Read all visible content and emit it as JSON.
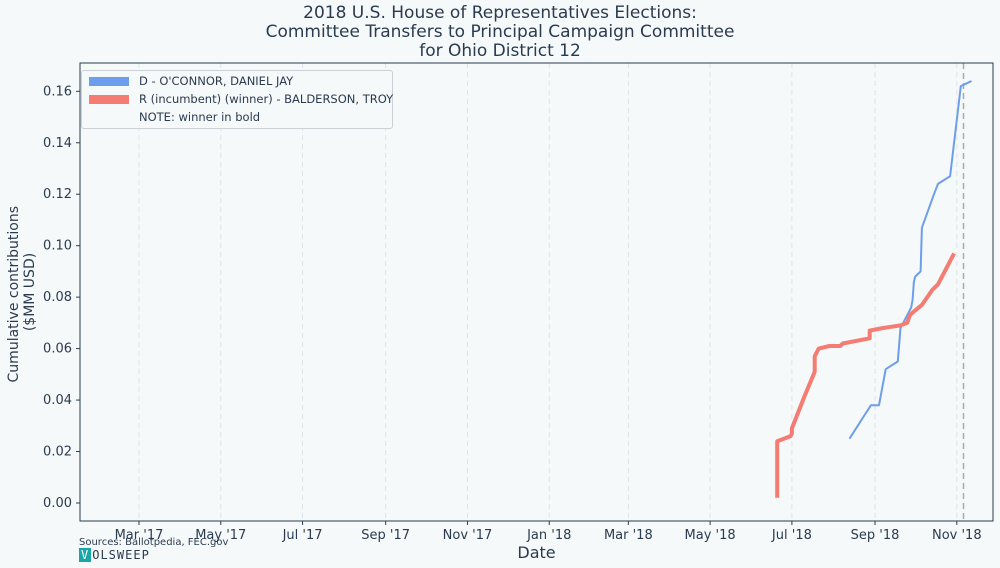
{
  "title_lines": [
    "2018 U.S. House of Representatives Elections:",
    "Committee Transfers to Principal Campaign Committee",
    "for Ohio District 12"
  ],
  "sources": "Sources: Ballotpedia, FEC.gov",
  "logo": {
    "first": "V",
    "rest": "OLSWEEP"
  },
  "legend": {
    "items": [
      {
        "label": "D - O'CONNOR, DANIEL JAY",
        "color": "#6d9eeb"
      },
      {
        "label": "R (incumbent) (winner) - BALDERSON, TROY",
        "color": "#f47c72"
      }
    ],
    "note": "NOTE: winner in bold"
  },
  "chart_data": {
    "type": "line",
    "title": "2018 U.S. House of Representatives Elections: Committee Transfers to Principal Campaign Committee for Ohio District 12",
    "xlabel": "Date",
    "ylabel_lines": [
      "Cumulative contributions",
      "($MM USD)"
    ],
    "xlim": [
      "2017-01-16",
      "2018-11-28"
    ],
    "ylim": [
      -0.007,
      0.171
    ],
    "x_ticks": [
      {
        "date": "2017-03-01",
        "label": "Mar '17"
      },
      {
        "date": "2017-05-01",
        "label": "May '17"
      },
      {
        "date": "2017-07-01",
        "label": "Jul '17"
      },
      {
        "date": "2017-09-01",
        "label": "Sep '17"
      },
      {
        "date": "2017-11-01",
        "label": "Nov '17"
      },
      {
        "date": "2018-01-01",
        "label": "Jan '18"
      },
      {
        "date": "2018-03-01",
        "label": "Mar '18"
      },
      {
        "date": "2018-05-01",
        "label": "May '18"
      },
      {
        "date": "2018-07-01",
        "label": "Jul '18"
      },
      {
        "date": "2018-09-01",
        "label": "Sep '18"
      },
      {
        "date": "2018-11-01",
        "label": "Nov '18"
      }
    ],
    "y_ticks": [
      0.0,
      0.02,
      0.04,
      0.06,
      0.08,
      0.1,
      0.12,
      0.14,
      0.16
    ],
    "y_tick_labels": [
      "0.00",
      "0.02",
      "0.04",
      "0.06",
      "0.08",
      "0.10",
      "0.12",
      "0.14",
      "0.16"
    ],
    "grid": "vertical-dashed",
    "legend_position": "top-left",
    "event_line": {
      "date": "2018-11-06",
      "style": "dashed",
      "color": "#aaaaaa"
    },
    "series": [
      {
        "name": "D - O'CONNOR, DANIEL JAY",
        "color": "#6d9eeb",
        "bold": false,
        "points": [
          [
            "2018-08-13",
            0.025
          ],
          [
            "2018-08-24",
            0.034
          ],
          [
            "2018-08-29",
            0.038
          ],
          [
            "2018-09-04",
            0.038
          ],
          [
            "2018-09-09",
            0.052
          ],
          [
            "2018-09-18",
            0.055
          ],
          [
            "2018-09-20",
            0.068
          ],
          [
            "2018-09-24",
            0.072
          ],
          [
            "2018-09-28",
            0.076
          ],
          [
            "2018-09-29",
            0.079
          ],
          [
            "2018-09-30",
            0.086
          ],
          [
            "2018-10-01",
            0.088
          ],
          [
            "2018-10-05",
            0.09
          ],
          [
            "2018-10-06",
            0.107
          ],
          [
            "2018-10-15",
            0.12
          ],
          [
            "2018-10-18",
            0.124
          ],
          [
            "2018-10-27",
            0.127
          ],
          [
            "2018-11-04",
            0.162
          ],
          [
            "2018-11-12",
            0.164
          ]
        ]
      },
      {
        "name": "R (incumbent) (winner) - BALDERSON, TROY",
        "color": "#f47c72",
        "bold": true,
        "points": [
          [
            "2018-06-20",
            0.002
          ],
          [
            "2018-06-20",
            0.024
          ],
          [
            "2018-06-25",
            0.025
          ],
          [
            "2018-06-30",
            0.026
          ],
          [
            "2018-07-01",
            0.027
          ],
          [
            "2018-07-01",
            0.029
          ],
          [
            "2018-07-10",
            0.041
          ],
          [
            "2018-07-18",
            0.051
          ],
          [
            "2018-07-18",
            0.057
          ],
          [
            "2018-07-21",
            0.06
          ],
          [
            "2018-07-29",
            0.061
          ],
          [
            "2018-08-06",
            0.061
          ],
          [
            "2018-08-08",
            0.062
          ],
          [
            "2018-08-28",
            0.064
          ],
          [
            "2018-08-28",
            0.067
          ],
          [
            "2018-09-07",
            0.068
          ],
          [
            "2018-09-20",
            0.069
          ],
          [
            "2018-09-25",
            0.07
          ],
          [
            "2018-09-27",
            0.073
          ],
          [
            "2018-09-29",
            0.074
          ],
          [
            "2018-10-06",
            0.077
          ],
          [
            "2018-10-14",
            0.083
          ],
          [
            "2018-10-18",
            0.085
          ],
          [
            "2018-10-30",
            0.097
          ]
        ]
      }
    ]
  }
}
